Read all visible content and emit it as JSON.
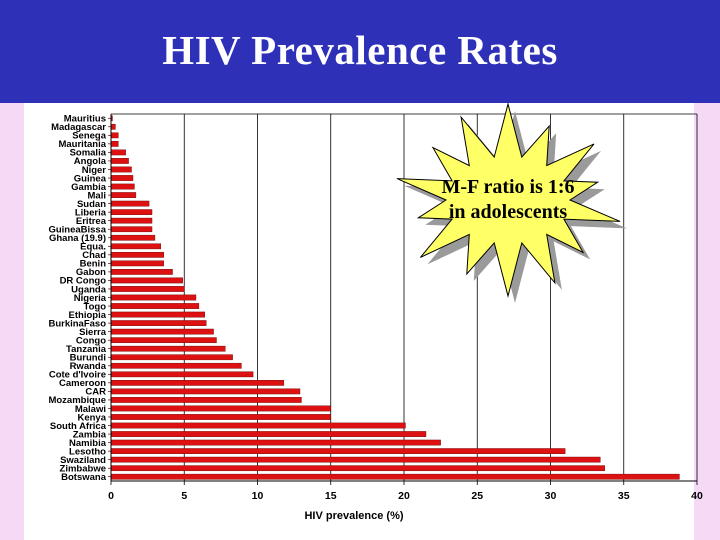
{
  "slide": {
    "title": "HIV Prevalence Rates",
    "title_bar_color": "#2e31b8",
    "background_color": "#f5d9f5"
  },
  "callout": {
    "line1": "M-F ratio is 1:6",
    "line2": "in adolescents",
    "fill_color": "#ffff66",
    "shadow_color": "#9a9a9a"
  },
  "chart_data": {
    "type": "bar",
    "orientation": "horizontal",
    "title": "",
    "xlabel": "HIV prevalence (%)",
    "ylabel": "",
    "xlim": [
      0,
      40
    ],
    "xticks": [
      0,
      5,
      10,
      15,
      20,
      25,
      30,
      35,
      40
    ],
    "grid": "vertical",
    "bar_color": "#dd1111",
    "categories": [
      "Mauritius",
      "Madagascar",
      "Senega",
      "Mauritania",
      "Somalia",
      "Angola",
      "Niger",
      "Guinea",
      "Gambia",
      "Mali",
      "Sudan",
      "Liberia",
      "Eritrea",
      "GuineaBissa",
      "Ghana (19.9)",
      "Equa.",
      "Chad",
      "Benin",
      "Gabon",
      "DR Congo",
      "Uganda",
      "Nigeria",
      "Togo",
      "Ethiopia",
      "BurkinaFaso",
      "Sierra",
      "Congo",
      "Tanzania",
      "Burundi",
      "Rwanda",
      "Cote d'Ivoire",
      "Cameroon",
      "CAR",
      "Mozambique",
      "Malawi",
      "Kenya",
      "South Africa",
      "Zambia",
      "Namibia",
      "Lesotho",
      "Swaziland",
      "Zimbabwe",
      "Botswana"
    ],
    "values": [
      0.1,
      0.3,
      0.5,
      0.5,
      1.0,
      1.2,
      1.4,
      1.5,
      1.6,
      1.7,
      2.6,
      2.8,
      2.8,
      2.8,
      3.0,
      3.4,
      3.6,
      3.6,
      4.2,
      4.9,
      5.0,
      5.8,
      6.0,
      6.4,
      6.5,
      7.0,
      7.2,
      7.8,
      8.3,
      8.9,
      9.7,
      11.8,
      12.9,
      13.0,
      15.0,
      15.0,
      20.1,
      21.5,
      22.5,
      31.0,
      33.4,
      33.7,
      38.8
    ]
  }
}
